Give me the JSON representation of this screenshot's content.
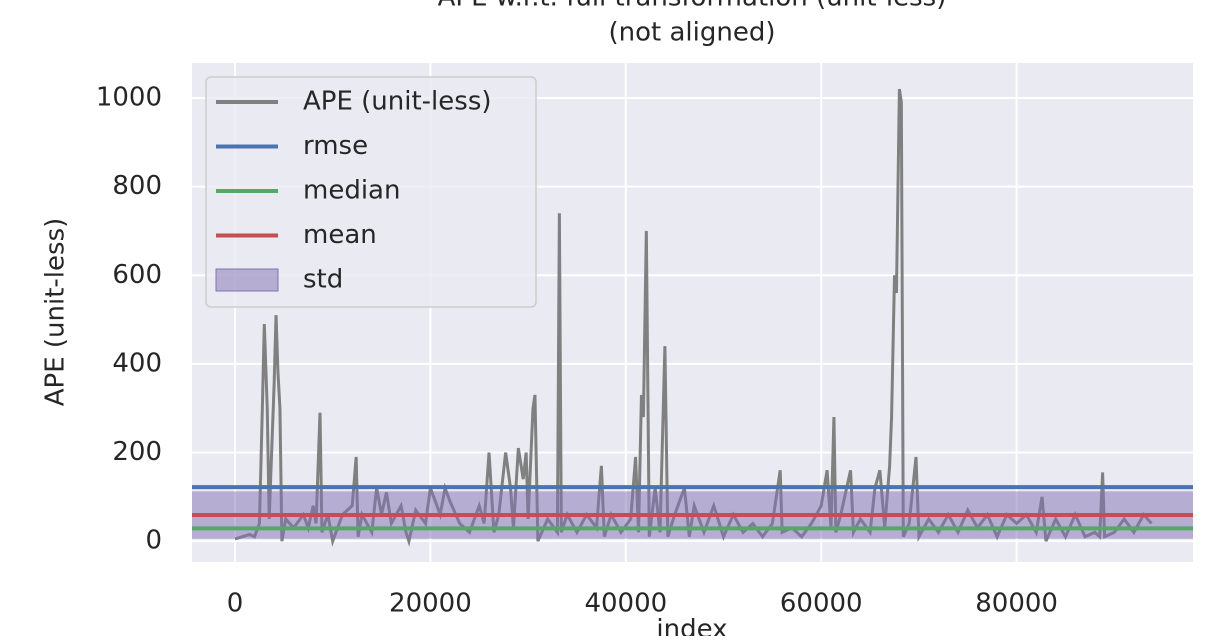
{
  "chart_data": {
    "type": "line",
    "title": "APE w.r.t. full transformation (unit-less)",
    "subtitle": "(not aligned)",
    "x_label": "index",
    "y_label": "APE (unit-less)",
    "x": [
      0,
      1500,
      2000,
      2500,
      2800,
      3000,
      3300,
      3500,
      4000,
      4200,
      4400,
      4600,
      4800,
      5200,
      6000,
      7000,
      7500,
      8000,
      8300,
      8700,
      8900,
      9500,
      10000,
      11000,
      12000,
      12400,
      12600,
      13000,
      14000,
      14500,
      15000,
      15500,
      16000,
      17000,
      17500,
      17800,
      18500,
      19500,
      20000,
      21000,
      21500,
      22000,
      23000,
      24000,
      25000,
      25500,
      26000,
      26500,
      27000,
      27700,
      28200,
      28500,
      29000,
      29500,
      29800,
      30000,
      30500,
      30700,
      31000,
      32000,
      33000,
      33200,
      33400,
      34000,
      35000,
      36000,
      37000,
      37500,
      37800,
      38500,
      39500,
      40500,
      41000,
      41300,
      41600,
      41800,
      42100,
      42400,
      43000,
      43500,
      44000,
      44300,
      45000,
      46000,
      46500,
      47000,
      48000,
      49000,
      50000,
      51000,
      52000,
      53000,
      54000,
      55000,
      55800,
      56000,
      57000,
      58000,
      59000,
      60000,
      60600,
      61000,
      61300,
      61500,
      62000,
      63000,
      63300,
      64000,
      65000,
      65500,
      66000,
      66500,
      67000,
      67200,
      67500,
      67700,
      68000,
      68200,
      68400,
      69000,
      69700,
      70000,
      71000,
      72000,
      73000,
      74000,
      75000,
      76000,
      77000,
      78000,
      79000,
      80000,
      81000,
      82000,
      82600,
      83000,
      84000,
      85000,
      86000,
      87000,
      88000,
      88500,
      88800,
      89000,
      90000,
      91000,
      92000,
      93000,
      93800
    ],
    "series": [
      {
        "name": "APE (unit-less)",
        "color": "#808080",
        "values": [
          5,
          15,
          10,
          40,
          300,
          490,
          300,
          50,
          350,
          510,
          380,
          300,
          0,
          50,
          30,
          60,
          30,
          80,
          40,
          290,
          20,
          60,
          0,
          60,
          80,
          190,
          10,
          60,
          20,
          120,
          60,
          110,
          40,
          80,
          20,
          0,
          70,
          40,
          120,
          60,
          120,
          90,
          40,
          20,
          80,
          40,
          200,
          20,
          60,
          200,
          120,
          30,
          210,
          140,
          200,
          50,
          300,
          330,
          0,
          50,
          20,
          740,
          20,
          60,
          20,
          60,
          30,
          170,
          10,
          60,
          20,
          50,
          190,
          20,
          330,
          280,
          700,
          10,
          120,
          20,
          440,
          10,
          60,
          120,
          10,
          80,
          20,
          80,
          10,
          60,
          20,
          40,
          10,
          40,
          160,
          20,
          30,
          10,
          40,
          80,
          160,
          30,
          280,
          20,
          60,
          160,
          20,
          50,
          20,
          120,
          160,
          30,
          170,
          280,
          600,
          560,
          1020,
          990,
          10,
          40,
          190,
          10,
          50,
          20,
          60,
          20,
          70,
          30,
          60,
          10,
          60,
          40,
          60,
          20,
          100,
          0,
          50,
          10,
          60,
          10,
          20,
          10,
          155,
          10,
          20,
          50,
          20,
          60,
          40
        ]
      }
    ],
    "stats": [
      {
        "name": "rmse",
        "color": "#4c72b0",
        "value": 122
      },
      {
        "name": "median",
        "color": "#55a868",
        "value": 29
      },
      {
        "name": "mean",
        "color": "#c44e52",
        "value": 59
      },
      {
        "name": "std",
        "color": "#8172b2",
        "value": 107
      }
    ],
    "xlim": [
      -4400,
      98050
    ],
    "xticks": [
      0,
      20000,
      40000,
      60000,
      80000
    ],
    "ylim": [
      -47,
      1079
    ],
    "yticks": [
      0,
      200,
      400,
      600,
      800,
      1000
    ],
    "grid": true,
    "legend": "upper left"
  }
}
